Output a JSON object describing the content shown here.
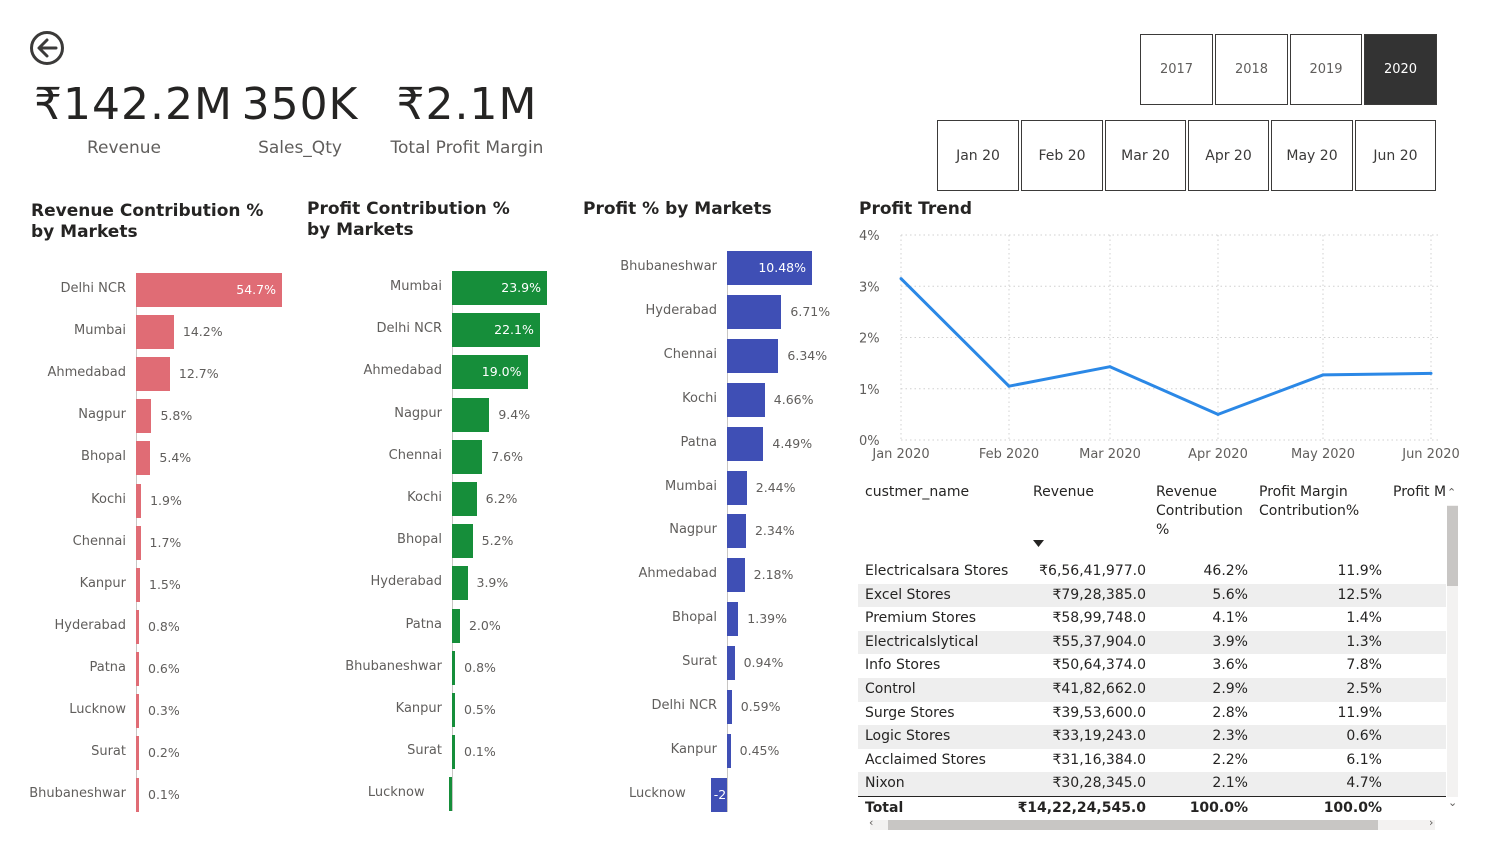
{
  "kpis": [
    {
      "value": "₹142.2M",
      "label": "Revenue"
    },
    {
      "value": "350K",
      "label": "Sales_Qty"
    },
    {
      "value": "₹2.1M",
      "label": "Total Profit Margin"
    }
  ],
  "year_slicer": {
    "options": [
      "2017",
      "2018",
      "2019",
      "2020"
    ],
    "selected": "2020"
  },
  "month_slicer": {
    "options": [
      "Jan 20",
      "Feb 20",
      "Mar 20",
      "Apr 20",
      "May 20",
      "Jun 20"
    ]
  },
  "colors": {
    "revenue_bar": "#e06c75",
    "profit_bar": "#168e3a",
    "profit_pct_bar": "#3f4fb5",
    "trend_line": "#2b88e6",
    "selected_slicer": "#333333"
  },
  "icons": {
    "back": "arrow-left-circle-icon",
    "sort": "triangle-down-icon"
  },
  "chart_data": [
    {
      "type": "bar",
      "orientation": "horizontal",
      "title": "Revenue Contribution % by Markets",
      "categories": [
        "Delhi NCR",
        "Mumbai",
        "Ahmedabad",
        "Nagpur",
        "Bhopal",
        "Kochi",
        "Chennai",
        "Kanpur",
        "Hyderabad",
        "Patna",
        "Lucknow",
        "Surat",
        "Bhubaneshwar"
      ],
      "values": [
        54.7,
        14.2,
        12.7,
        5.8,
        5.4,
        1.9,
        1.7,
        1.5,
        0.8,
        0.6,
        0.3,
        0.2,
        0.1
      ],
      "labels": [
        "54.7%",
        "14.2%",
        "12.7%",
        "5.8%",
        "5.4%",
        "1.9%",
        "1.7%",
        "1.5%",
        "0.8%",
        "0.6%",
        "0.3%",
        "0.2%",
        "0.1%"
      ],
      "xlim": [
        0,
        54.7
      ]
    },
    {
      "type": "bar",
      "orientation": "horizontal",
      "title": "Profit Contribution % by Markets",
      "categories": [
        "Mumbai",
        "Delhi NCR",
        "Ahmedabad",
        "Nagpur",
        "Chennai",
        "Kochi",
        "Bhopal",
        "Hyderabad",
        "Patna",
        "Bhubaneshwar",
        "Kanpur",
        "Surat",
        "Lucknow"
      ],
      "values": [
        23.9,
        22.1,
        19.0,
        9.4,
        7.6,
        6.2,
        5.2,
        3.9,
        2.0,
        0.8,
        0.5,
        0.1,
        -0.6
      ],
      "labels": [
        "23.9%",
        "22.1%",
        "19.0%",
        "9.4%",
        "7.6%",
        "6.2%",
        "5.2%",
        "3.9%",
        "2.0%",
        "0.8%",
        "0.5%",
        "0.1%",
        "("
      ],
      "xlim": [
        -0.6,
        23.9
      ]
    },
    {
      "type": "bar",
      "orientation": "horizontal",
      "title": "Profit % by Markets",
      "categories": [
        "Bhubaneshwar",
        "Hyderabad",
        "Chennai",
        "Kochi",
        "Patna",
        "Mumbai",
        "Nagpur",
        "Ahmedabad",
        "Bhopal",
        "Surat",
        "Delhi NCR",
        "Kanpur",
        "Lucknow"
      ],
      "values": [
        10.48,
        6.71,
        6.34,
        4.66,
        4.49,
        2.44,
        2.34,
        2.18,
        1.39,
        0.94,
        0.59,
        0.45,
        -2.0
      ],
      "labels": [
        "10.48%",
        "6.71%",
        "6.34%",
        "4.66%",
        "4.49%",
        "2.44%",
        "2.34%",
        "2.18%",
        "1.39%",
        "0.94%",
        "0.59%",
        "0.45%",
        "-2"
      ],
      "xlim": [
        -2.0,
        10.48
      ]
    },
    {
      "type": "line",
      "title": "Profit Trend",
      "x": [
        "Jan 2020",
        "Feb 2020",
        "Mar 2020",
        "Apr 2020",
        "May 2020",
        "Jun 2020"
      ],
      "values": [
        3.15,
        1.05,
        1.43,
        0.5,
        1.27,
        1.3
      ],
      "yticks": [
        "0%",
        "1%",
        "2%",
        "3%",
        "4%"
      ],
      "ylim": [
        0,
        4
      ],
      "grid": true
    }
  ],
  "table": {
    "columns": [
      "custmer_name",
      "Revenue",
      "Revenue Contribution %",
      "Profit Margin Contribution%",
      "Profit M"
    ],
    "rows": [
      [
        "Electricalsara Stores",
        "₹6,56,41,977.0",
        "46.2%",
        "11.9%"
      ],
      [
        "Excel Stores",
        "₹79,28,385.0",
        "5.6%",
        "12.5%"
      ],
      [
        "Premium Stores",
        "₹58,99,748.0",
        "4.1%",
        "1.4%"
      ],
      [
        "Electricalslytical",
        "₹55,37,904.0",
        "3.9%",
        "1.3%"
      ],
      [
        "Info Stores",
        "₹50,64,374.0",
        "3.6%",
        "7.8%"
      ],
      [
        "Control",
        "₹41,82,662.0",
        "2.9%",
        "2.5%"
      ],
      [
        "Surge Stores",
        "₹39,53,600.0",
        "2.8%",
        "11.9%"
      ],
      [
        "Logic Stores",
        "₹33,19,243.0",
        "2.3%",
        "0.6%"
      ],
      [
        "Acclaimed Stores",
        "₹31,16,384.0",
        "2.2%",
        "6.1%"
      ],
      [
        "Nixon",
        "₹30,28,345.0",
        "2.1%",
        "4.7%"
      ]
    ],
    "total": [
      "Total",
      "₹14,22,24,545.0",
      "100.0%",
      "100.0%"
    ]
  }
}
